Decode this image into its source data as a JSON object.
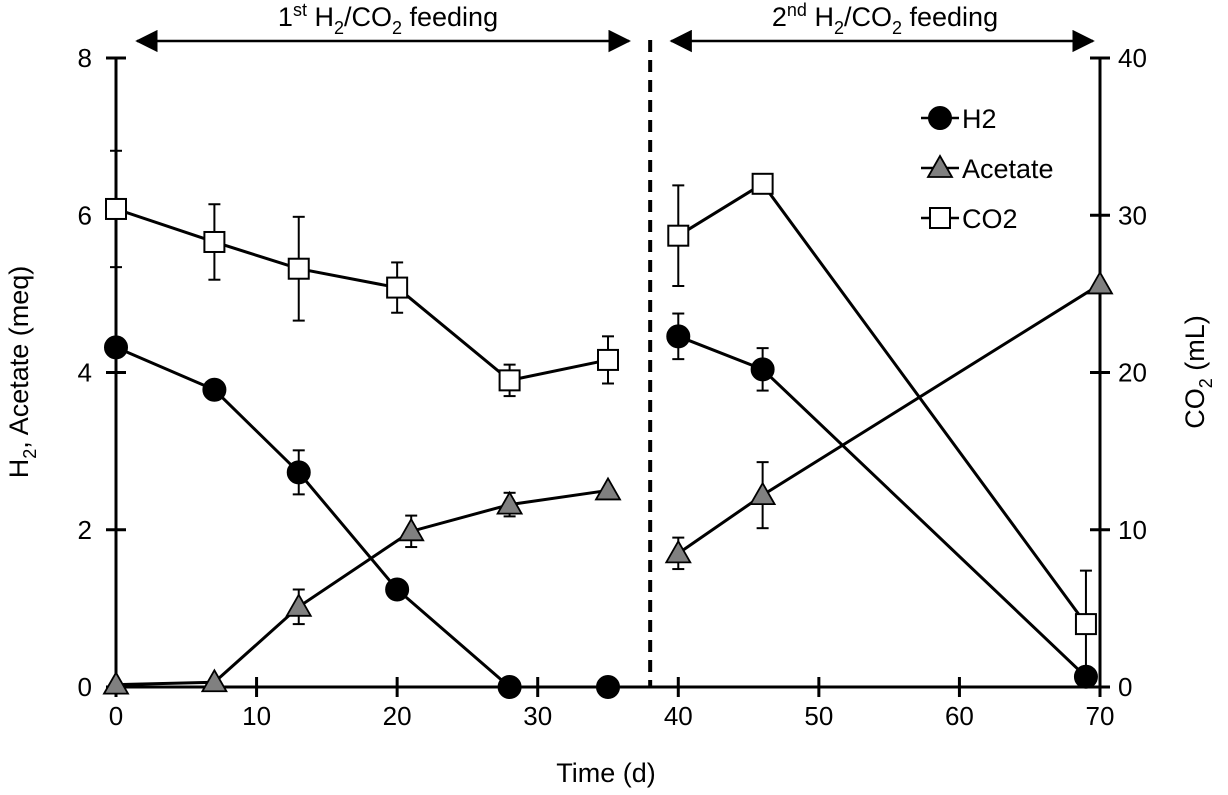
{
  "chart_data": {
    "type": "line",
    "xlabel": "Time (d)",
    "ylabel_left": {
      "main": "H",
      "sub": "2",
      "rest": ", Acetate (meq)"
    },
    "ylabel_right": {
      "main": "CO",
      "sub": "2",
      "rest": " (mL)"
    },
    "xlim": [
      0,
      70
    ],
    "ylim_left": [
      0,
      8
    ],
    "ylim_right": [
      0,
      40
    ],
    "xticks": [
      0,
      10,
      20,
      30,
      40,
      50,
      60,
      70
    ],
    "yticks_left": [
      0,
      2,
      4,
      6,
      8
    ],
    "yticks_right": [
      0,
      10,
      20,
      30,
      40
    ],
    "divider_x": 38,
    "feedings": [
      {
        "prefix": "1",
        "sup": "st",
        "h": " H",
        "sub1": "2",
        "mid": "/CO",
        "sub2": "2",
        "suffix": " feeding",
        "x_start": 1.5,
        "x_end": 36.5
      },
      {
        "prefix": "2",
        "sup": "nd",
        "h": " H",
        "sub1": "2",
        "mid": "/CO",
        "sub2": "2",
        "suffix": " feeding",
        "x_start": 39.5,
        "x_end": 69.5
      }
    ],
    "series": [
      {
        "name": "H2",
        "axis": "left",
        "marker": "circle",
        "color": "#000000",
        "segments": [
          [
            {
              "x": 0,
              "y": 4.32,
              "err": 0
            },
            {
              "x": 7,
              "y": 3.78,
              "err": 0
            },
            {
              "x": 13,
              "y": 2.73,
              "err": 0.28
            },
            {
              "x": 20,
              "y": 1.24,
              "err": 0
            },
            {
              "x": 28,
              "y": 0.0,
              "err": 0
            },
            {
              "x": 35,
              "y": 0.0,
              "err": 0
            }
          ],
          [
            {
              "x": 40,
              "y": 4.46,
              "err": 0.29
            },
            {
              "x": 46,
              "y": 4.04,
              "err": 0.27
            },
            {
              "x": 69,
              "y": 0.13,
              "err": 0
            }
          ]
        ]
      },
      {
        "name": "Acetate",
        "axis": "left",
        "marker": "triangle",
        "color": "#808080",
        "segments": [
          [
            {
              "x": 0,
              "y": 0.03,
              "err": 0
            },
            {
              "x": 7,
              "y": 0.06,
              "err": 0
            },
            {
              "x": 13,
              "y": 1.02,
              "err": 0.22
            },
            {
              "x": 21,
              "y": 1.98,
              "err": 0.2
            },
            {
              "x": 28,
              "y": 2.32,
              "err": 0.15
            },
            {
              "x": 35,
              "y": 2.5,
              "err": 0
            }
          ],
          [
            {
              "x": 40,
              "y": 1.7,
              "err": 0.2
            },
            {
              "x": 46,
              "y": 2.44,
              "err": 0.42
            },
            {
              "x": 70,
              "y": 5.12,
              "err": 0
            }
          ]
        ]
      },
      {
        "name": "CO2",
        "axis": "right",
        "marker": "square",
        "color": "#ffffff",
        "segments": [
          [
            {
              "x": 0,
              "y": 30.4,
              "err": 3.7
            },
            {
              "x": 7,
              "y": 28.3,
              "err": 2.4
            },
            {
              "x": 13,
              "y": 26.6,
              "err": 3.3
            },
            {
              "x": 20,
              "y": 25.4,
              "err": 1.6
            },
            {
              "x": 28,
              "y": 19.5,
              "err": 1.0
            },
            {
              "x": 35,
              "y": 20.8,
              "err": 1.5
            }
          ],
          [
            {
              "x": 40,
              "y": 28.7,
              "err": 3.2
            },
            {
              "x": 46,
              "y": 32.0,
              "err": 0
            },
            {
              "x": 69,
              "y": 4.0,
              "err": 3.4
            }
          ]
        ]
      }
    ],
    "legend": [
      {
        "label": "H2",
        "marker": "circle",
        "color": "#000000"
      },
      {
        "label": "Acetate",
        "marker": "triangle",
        "color": "#808080"
      },
      {
        "label": "CO2",
        "marker": "square",
        "color": "#ffffff"
      }
    ],
    "legend_position": "top-right"
  }
}
